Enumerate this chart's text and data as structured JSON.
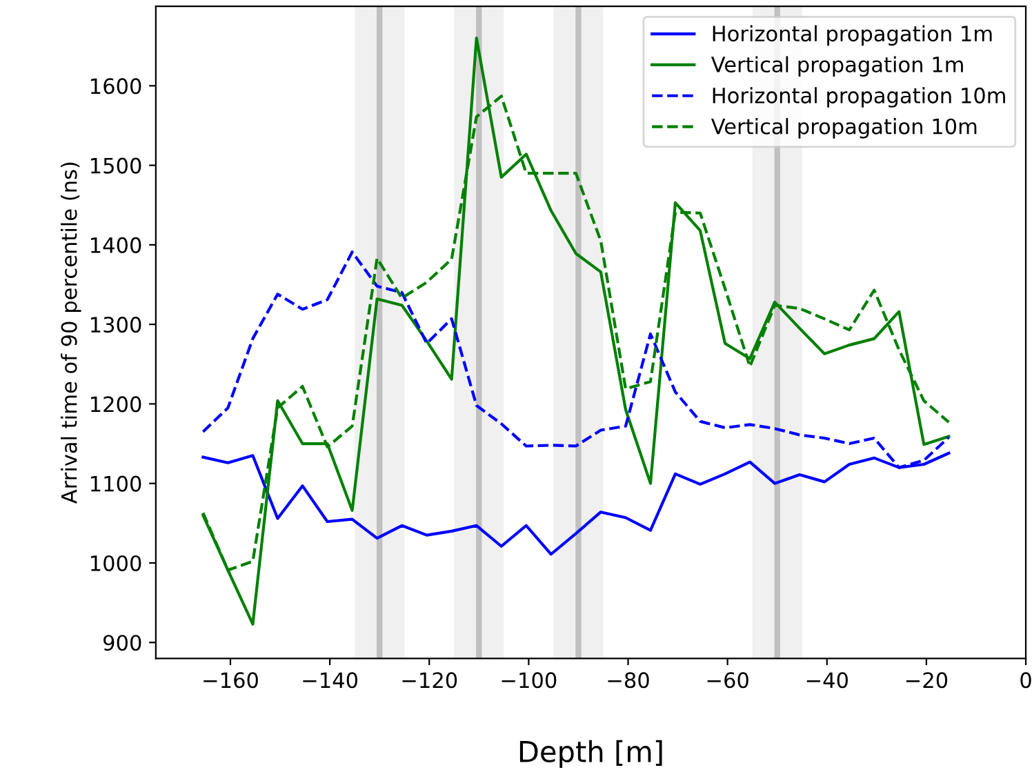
{
  "chart_data": {
    "type": "line",
    "xlabel": "Depth [m]",
    "ylabel": "Arrival time of 90 percentile (ns)",
    "x": [
      -165.5,
      -160.5,
      -155.5,
      -150.5,
      -145.5,
      -140.5,
      -135.5,
      -130.5,
      -125.5,
      -120.5,
      -115.5,
      -110.5,
      -105.5,
      -100.5,
      -95.5,
      -90.5,
      -85.5,
      -80.5,
      -75.5,
      -70.5,
      -65.5,
      -60.5,
      -55.5,
      -50.5,
      -45.5,
      -40.5,
      -35.5,
      -30.5,
      -25.5,
      -20.5,
      -15.5
    ],
    "series": [
      {
        "name": "Horizontal propagation 1m",
        "color": "#0000ff",
        "line_style": "solid",
        "values": [
          1133,
          1126,
          1135,
          1056,
          1097,
          1052,
          1055,
          1031,
          1047,
          1035,
          1040,
          1047,
          1021,
          1047,
          1011,
          1037,
          1064,
          1057,
          1041,
          1112,
          1099,
          1112,
          1127,
          1100,
          1111,
          1102,
          1124,
          1132,
          1120,
          1124,
          1138
        ]
      },
      {
        "name": "Vertical propagation 1m",
        "color": "#008000",
        "line_style": "solid",
        "values": [
          1060,
          991,
          923,
          1204,
          1150,
          1150,
          1066,
          1332,
          1324,
          1279,
          1231,
          1660,
          1485,
          1514,
          1443,
          1389,
          1366,
          1193,
          1100,
          1453,
          1418,
          1276,
          1257,
          1328,
          1295,
          1263,
          1274,
          1282,
          1316,
          1149,
          1159
        ]
      },
      {
        "name": "Horizontal propagation 10m",
        "color": "#0000ff",
        "line_style": "dashed",
        "values": [
          1165,
          1195,
          1282,
          1338,
          1319,
          1331,
          1391,
          1348,
          1340,
          1276,
          1307,
          1198,
          1175,
          1147,
          1148,
          1147,
          1167,
          1172,
          1288,
          1215,
          1178,
          1170,
          1174,
          1169,
          1161,
          1157,
          1150,
          1157,
          1120,
          1129,
          1158
        ]
      },
      {
        "name": "Vertical propagation 10m",
        "color": "#008000",
        "line_style": "dashed",
        "values": [
          1063,
          991,
          1002,
          1195,
          1222,
          1146,
          1172,
          1383,
          1333,
          1353,
          1382,
          1561,
          1587,
          1490,
          1490,
          1490,
          1405,
          1219,
          1228,
          1441,
          1440,
          1345,
          1247,
          1324,
          1320,
          1307,
          1293,
          1343,
          1268,
          1204,
          1177
        ]
      }
    ],
    "xlim": [
      -175,
      0
    ],
    "xticks": [
      -160,
      -140,
      -120,
      -100,
      -80,
      -60,
      -40,
      -20,
      0
    ],
    "ylim": [
      880,
      1700
    ],
    "yticks": [
      900,
      1000,
      1100,
      1200,
      1300,
      1400,
      1500,
      1600
    ],
    "bands": [
      {
        "axis": "x",
        "from": -135,
        "to": -125,
        "color": "#f0f0f0"
      },
      {
        "axis": "x",
        "from": -115,
        "to": -105,
        "color": "#f0f0f0"
      },
      {
        "axis": "x",
        "from": -95,
        "to": -85,
        "color": "#f0f0f0"
      },
      {
        "axis": "x",
        "from": -55,
        "to": -45,
        "color": "#f0f0f0"
      }
    ],
    "ref_lines": [
      {
        "axis": "x",
        "value": -130,
        "color": "#c0c0c0"
      },
      {
        "axis": "x",
        "value": -110,
        "color": "#c0c0c0"
      },
      {
        "axis": "x",
        "value": -90,
        "color": "#c0c0c0"
      },
      {
        "axis": "x",
        "value": -50,
        "color": "#c0c0c0"
      }
    ],
    "grid": false,
    "legend": "top right"
  }
}
